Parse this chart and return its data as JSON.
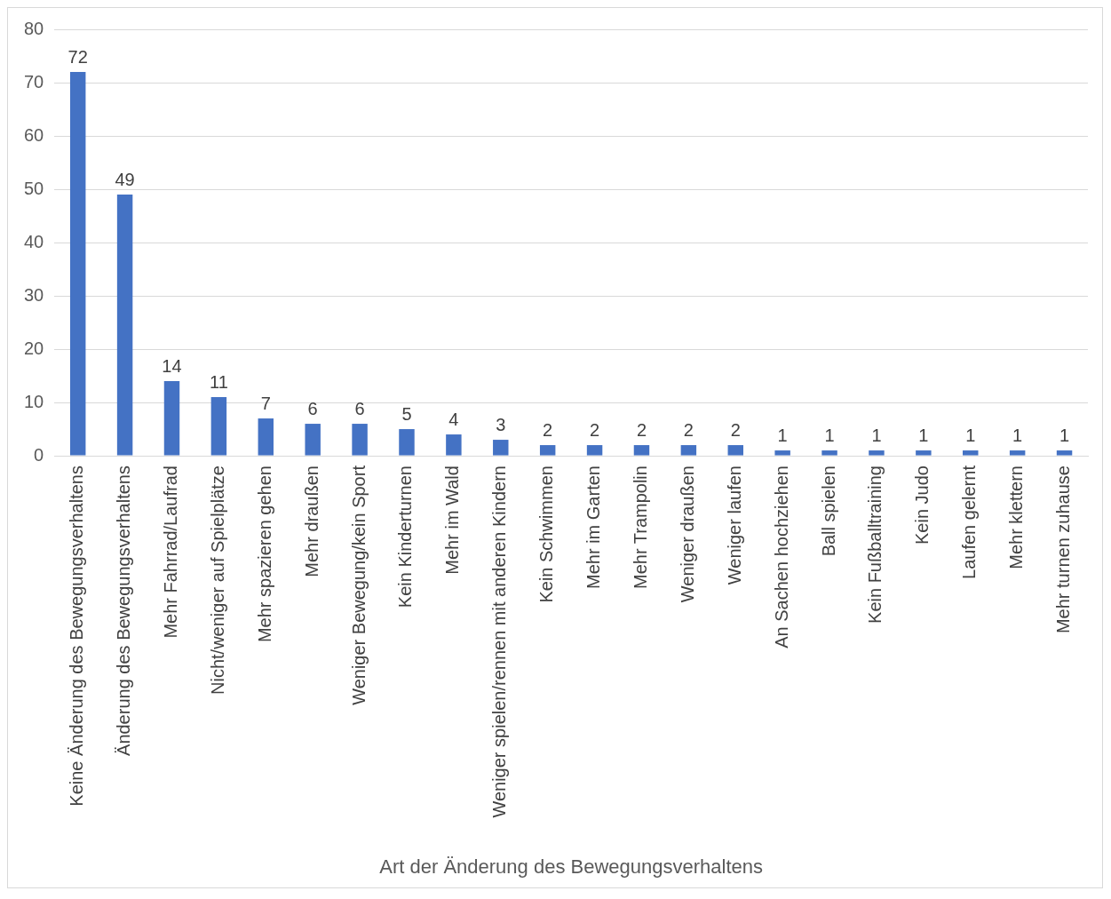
{
  "chart_data": {
    "type": "bar",
    "xlabel": "Art der Änderung des Bewegungsverhaltens",
    "categories": [
      "Keine Änderung des Bewegungsverhaltens",
      "Änderung des Bewegungsverhaltens",
      "Mehr Fahrrad/Laufrad",
      "Nicht/weniger auf Spielplätze",
      "Mehr spazieren gehen",
      "Mehr draußen",
      "Weniger Bewegung/kein Sport",
      "Kein Kinderturnen",
      "Mehr im Wald",
      "Weniger spielen/rennen mit anderen Kindern",
      "Kein Schwimmen",
      "Mehr im Garten",
      "Mehr Trampolin",
      "Weniger draußen",
      "Weniger laufen",
      "An Sachen hochziehen",
      "Ball spielen",
      "Kein Fußballtraining",
      "Kein Judo",
      "Laufen gelernt",
      "Mehr klettern",
      "Mehr turnen zuhause"
    ],
    "values": [
      72,
      49,
      14,
      11,
      7,
      6,
      6,
      5,
      4,
      3,
      2,
      2,
      2,
      2,
      2,
      1,
      1,
      1,
      1,
      1,
      1,
      1
    ],
    "color": "#4472c4",
    "ylim": [
      0,
      80
    ],
    "yticks": [
      0,
      10,
      20,
      30,
      40,
      50,
      60,
      70,
      80
    ],
    "grid": "y",
    "legend": false,
    "data_labels": true
  }
}
